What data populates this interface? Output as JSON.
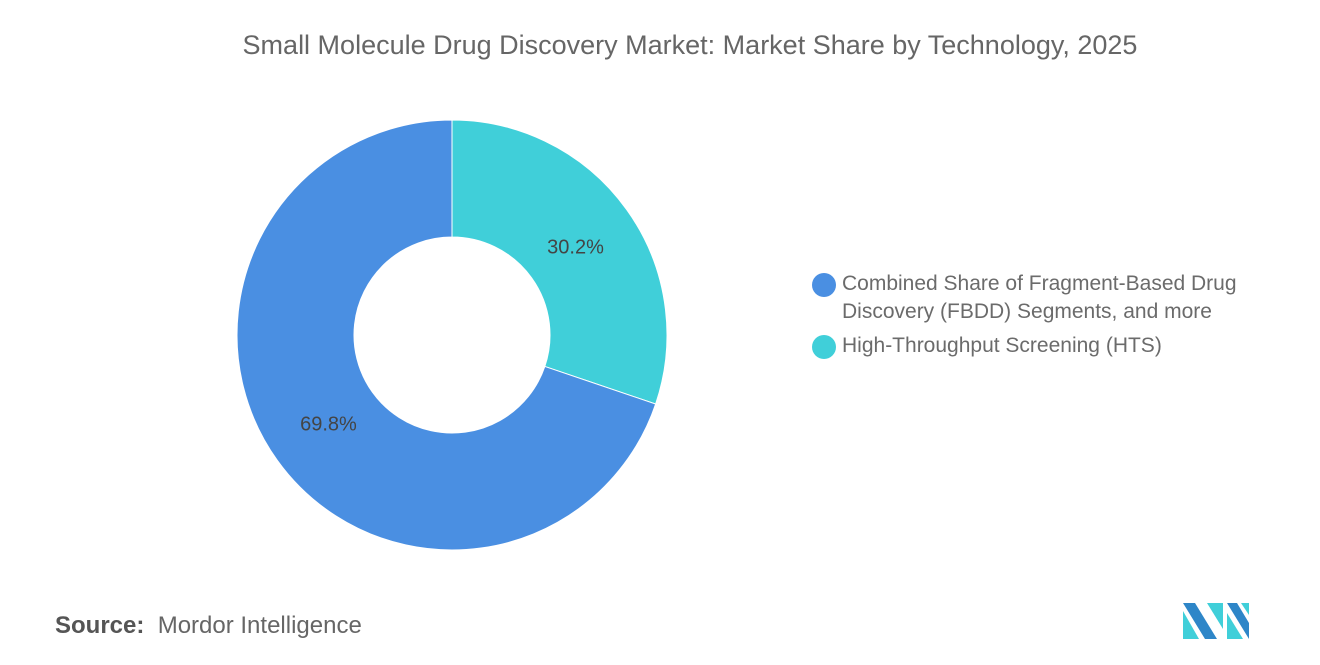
{
  "title": "Small Molecule Drug Discovery Market: Market Share by Technology, 2025",
  "chart_data": {
    "type": "pie",
    "donut": true,
    "title": "Small Molecule Drug Discovery Market: Market Share by Technology, 2025",
    "categories": [
      "High-Throughput Screening (HTS)",
      "Combined Share of Fragment-Based Drug Discovery (FBDD) Segments, and more"
    ],
    "values": [
      30.2,
      69.8
    ],
    "labels": [
      "30.2%",
      "69.8%"
    ],
    "colors": [
      "#40CFD9",
      "#4A8FE2"
    ],
    "legend_placement": "right"
  },
  "legend": [
    {
      "label": "Combined Share of Fragment-Based Drug Discovery (FBDD) Segments, and more",
      "color": "#4A8FE2"
    },
    {
      "label": "High-Throughput Screening (HTS)",
      "color": "#40CFD9"
    }
  ],
  "source": {
    "label": "Source:",
    "value": "Mordor Intelligence"
  },
  "logo": {
    "text": "Mordor Intelligence",
    "colors": [
      "#2E86C8",
      "#40CFD9"
    ]
  }
}
